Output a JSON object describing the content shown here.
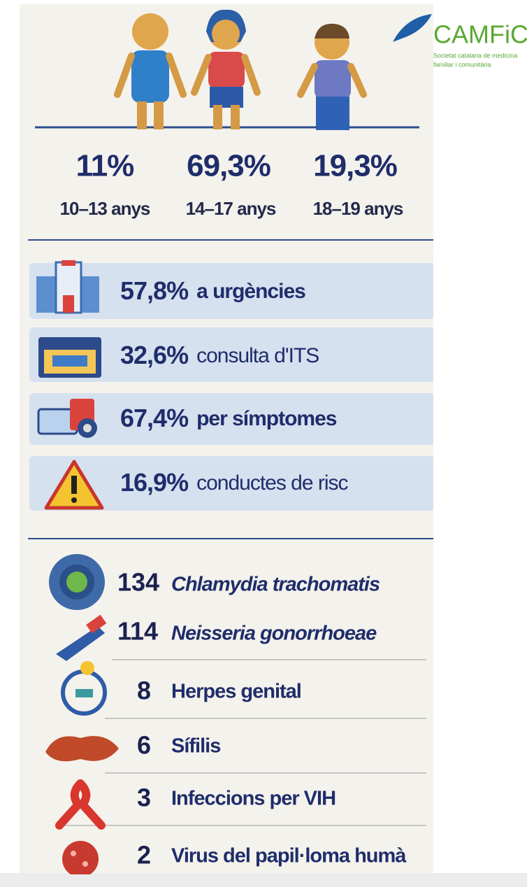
{
  "logo": {
    "name": "CAMFiC",
    "subtitle_lines": [
      "Societat catalana de medicina",
      "familiar i comunitària"
    ]
  },
  "age_groups": [
    {
      "percent": "11%",
      "label": "10–13 anys"
    },
    {
      "percent": "69,3%",
      "label": "14–17 anys"
    },
    {
      "percent": "19,3%",
      "label": "18–19 anys"
    }
  ],
  "reasons": [
    {
      "percent": "57,8%",
      "label": "a urgències"
    },
    {
      "percent": "32,6%",
      "label": "consulta d'ITS"
    },
    {
      "percent": "67,4%",
      "label": "per símptomes"
    },
    {
      "percent": "16,9%",
      "label": "conductes de risc"
    }
  ],
  "infections": [
    {
      "count": "134",
      "name": "Chlamydia trachomatis"
    },
    {
      "count": "114",
      "name": "Neisseria gonorrhoeae"
    },
    {
      "count": "8",
      "name": "Herpes genital"
    },
    {
      "count": "6",
      "name": "Sífilis"
    },
    {
      "count": "3",
      "name": "Infeccions per VIH"
    },
    {
      "count": "2",
      "name": "Virus del papil·loma humà"
    }
  ]
}
